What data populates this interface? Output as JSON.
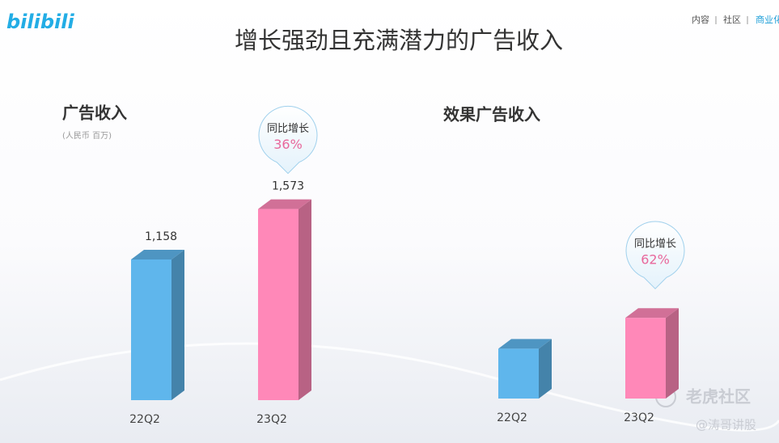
{
  "header": {
    "logo": "bilibili",
    "nav": [
      "内容",
      "社区",
      "商业化"
    ],
    "title": "增长强劲且充满潜力的广告收入"
  },
  "chart_data": [
    {
      "type": "bar3d",
      "title": "广告收入",
      "subtitle": "(人民币 百万)",
      "categories": [
        "22Q2",
        "23Q2"
      ],
      "values": [
        1158,
        1573
      ],
      "value_labels": [
        "1,158",
        "1,573"
      ],
      "colors": [
        "#5fb6ec",
        "#ff88b8"
      ],
      "annotation": {
        "text": "同比增长",
        "value": "36%"
      }
    },
    {
      "type": "bar3d",
      "title": "效果广告收入",
      "categories": [
        "22Q2",
        "23Q2"
      ],
      "values": [
        410,
        664
      ],
      "colors": [
        "#5fb6ec",
        "#ff88b8"
      ],
      "annotation": {
        "text": "同比增长",
        "value": "62%"
      }
    }
  ],
  "watermark": {
    "site": "老虎社区",
    "author": "@涛哥讲股"
  }
}
